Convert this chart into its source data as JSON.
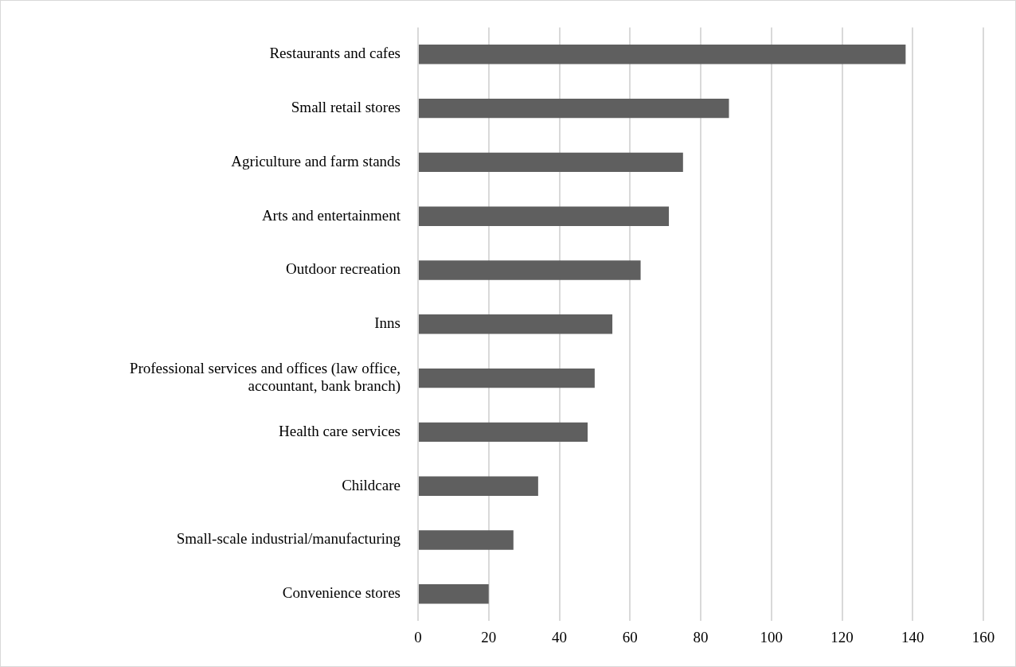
{
  "chart_data": {
    "type": "bar",
    "orientation": "horizontal",
    "categories": [
      "Restaurants and cafes",
      "Small retail stores",
      "Agriculture and farm stands",
      "Arts and entertainment",
      "Outdoor recreation",
      "Inns",
      "Professional services and offices (law office, accountant, bank branch)",
      "Health care services",
      "Childcare",
      "Small-scale industrial/manufacturing",
      "Convenience stores"
    ],
    "values": [
      138,
      88,
      75,
      71,
      63,
      55,
      50,
      48,
      34,
      27,
      20
    ],
    "color": "#5f5f5f",
    "xlim": [
      0,
      160
    ],
    "xticks": [
      0,
      20,
      40,
      60,
      80,
      100,
      120,
      140,
      160
    ],
    "grid": "x",
    "legend": false
  }
}
